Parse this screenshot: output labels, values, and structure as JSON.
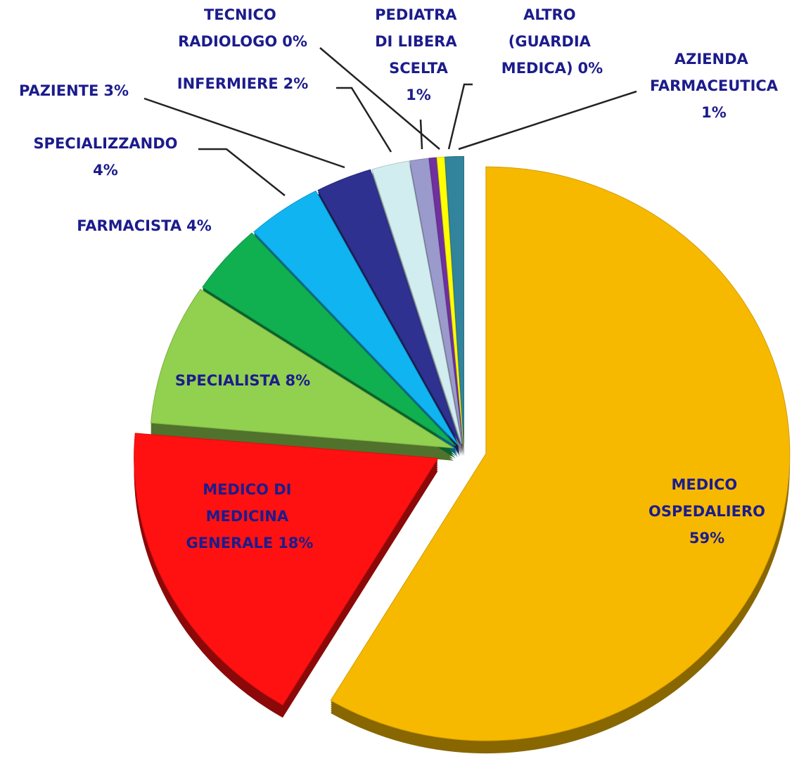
{
  "chart_data": {
    "type": "pie",
    "categories": [
      "MEDICO OSPEDALIERO",
      "MEDICO DI MEDICINA GENERALE",
      "SPECIALISTA",
      "FARMACISTA",
      "SPECIALIZZANDO",
      "PAZIENTE",
      "INFERMIERE",
      "PEDIATRA DI LIBERA SCELTA",
      "TECNICO RADIOLOGO",
      "ALTRO (GUARDIA MEDICA)",
      "AZIENDA FARMACEUTICA"
    ],
    "values": [
      59,
      18,
      8,
      4,
      4,
      3,
      2,
      1,
      0.4,
      0.4,
      1
    ],
    "value_labels": [
      "59%",
      "18%",
      "8%",
      "4%",
      "4%",
      "3%",
      "2%",
      "1%",
      "0%",
      "0%",
      "1%"
    ],
    "colors": [
      "#f7b900",
      "#ff1111",
      "#92d050",
      "#10b050",
      "#10b4f0",
      "#2e3190",
      "#d2edf0",
      "#9a9acc",
      "#7030a0",
      "#ffff00",
      "#31849b"
    ]
  }
}
